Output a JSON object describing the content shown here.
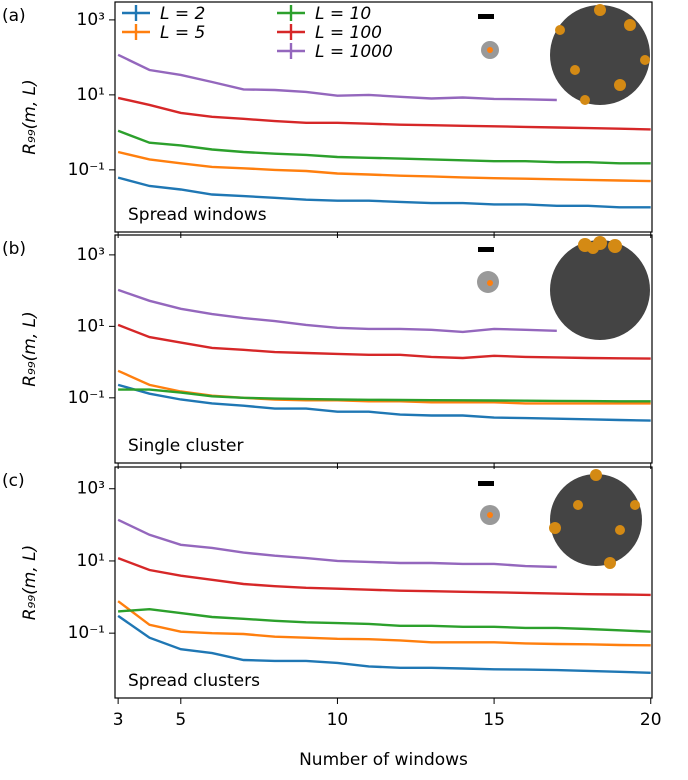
{
  "chart_data": [
    {
      "type": "line",
      "panel_label": "(a)",
      "annotation": "Spread windows",
      "ylabel": "R₉₉(m, L)",
      "yscale": "log",
      "legend": "upper left",
      "x": [
        3,
        4,
        5,
        6,
        7,
        8,
        9,
        10,
        11,
        12,
        13,
        14,
        15,
        16,
        17,
        18,
        19,
        20
      ],
      "xlim": [
        2.9,
        20.04
      ],
      "xticks": [
        3,
        5,
        10,
        15,
        20
      ],
      "ylim": [
        0.0022,
        3000
      ],
      "yticks": [
        {
          "value": 0.1,
          "label": "10⁻¹"
        },
        {
          "value": 10,
          "label": "10¹"
        },
        {
          "value": 1000,
          "label": "10³"
        }
      ],
      "series": [
        {
          "name": "L = 2",
          "color": "#1f77b4",
          "values": [
            0.062,
            0.037,
            0.03,
            0.022,
            0.02,
            0.018,
            0.016,
            0.015,
            0.015,
            0.014,
            0.013,
            0.013,
            0.012,
            0.012,
            0.011,
            0.011,
            0.01,
            0.01
          ]
        },
        {
          "name": "L = 5",
          "color": "#ff7f0e",
          "values": [
            0.3,
            0.19,
            0.15,
            0.12,
            0.11,
            0.1,
            0.093,
            0.08,
            0.075,
            0.07,
            0.067,
            0.063,
            0.06,
            0.058,
            0.056,
            0.054,
            0.052,
            0.05
          ]
        },
        {
          "name": "L = 10",
          "color": "#2ca02c",
          "values": [
            1.1,
            0.53,
            0.45,
            0.35,
            0.3,
            0.27,
            0.25,
            0.22,
            0.21,
            0.2,
            0.19,
            0.18,
            0.17,
            0.17,
            0.16,
            0.16,
            0.15,
            0.15
          ]
        },
        {
          "name": "L = 100",
          "color": "#d62728",
          "values": [
            8.3,
            5.4,
            3.3,
            2.6,
            2.3,
            2.0,
            1.8,
            1.8,
            1.7,
            1.6,
            1.55,
            1.5,
            1.45,
            1.4,
            1.35,
            1.3,
            1.25,
            1.2
          ]
        },
        {
          "name": "L = 1000",
          "color": "#9467bd",
          "values": [
            117,
            46,
            34,
            22,
            14,
            13.5,
            12,
            9.5,
            10,
            8.9,
            8,
            8.5,
            7.8,
            7.6,
            7.3,
            null,
            null,
            null
          ]
        }
      ]
    },
    {
      "type": "line",
      "panel_label": "(b)",
      "annotation": "Single cluster",
      "ylabel": "R₉₉(m, L)",
      "yscale": "log",
      "x": [
        3,
        4,
        5,
        6,
        7,
        8,
        9,
        10,
        11,
        12,
        13,
        14,
        15,
        16,
        17,
        18,
        19,
        20
      ],
      "xlim": [
        2.9,
        20.04
      ],
      "xticks": [
        3,
        5,
        10,
        15,
        20
      ],
      "ylim": [
        0.0015,
        3600
      ],
      "yticks": [
        {
          "value": 0.1,
          "label": "10⁻¹"
        },
        {
          "value": 10,
          "label": "10¹"
        },
        {
          "value": 1000,
          "label": "10³"
        }
      ],
      "series": [
        {
          "color": "#1f77b4",
          "values": [
            0.23,
            0.13,
            0.09,
            0.07,
            0.06,
            0.05,
            0.05,
            0.041,
            0.041,
            0.034,
            0.032,
            0.032,
            0.028,
            0.027,
            0.026,
            0.025,
            0.024,
            0.023
          ]
        },
        {
          "color": "#ff7f0e",
          "values": [
            0.57,
            0.23,
            0.15,
            0.115,
            0.1,
            0.09,
            0.085,
            0.085,
            0.08,
            0.08,
            0.075,
            0.075,
            0.075,
            0.07,
            0.07,
            0.07,
            0.07,
            0.07
          ]
        },
        {
          "color": "#2ca02c",
          "values": [
            0.17,
            0.17,
            0.14,
            0.11,
            0.1,
            0.095,
            0.092,
            0.09,
            0.088,
            0.087,
            0.086,
            0.085,
            0.084,
            0.083,
            0.082,
            0.081,
            0.08,
            0.08
          ]
        },
        {
          "color": "#d62728",
          "values": [
            11,
            5,
            3.5,
            2.5,
            2.2,
            1.9,
            1.8,
            1.7,
            1.6,
            1.6,
            1.4,
            1.3,
            1.5,
            1.4,
            1.35,
            1.3,
            1.28,
            1.25
          ]
        },
        {
          "color": "#9467bd",
          "values": [
            105,
            52,
            31,
            22,
            17,
            14,
            11,
            9.1,
            8.5,
            8.5,
            8,
            7,
            8.5,
            8,
            7.5,
            null,
            null,
            null
          ]
        }
      ]
    },
    {
      "type": "line",
      "panel_label": "(c)",
      "annotation": "Spread clusters",
      "ylabel": "R₉₉(m, L)",
      "xlabel": "Number of windows",
      "yscale": "log",
      "x": [
        3,
        4,
        5,
        6,
        7,
        8,
        9,
        10,
        11,
        12,
        13,
        14,
        15,
        16,
        17,
        18,
        19,
        20
      ],
      "xlim": [
        2.9,
        20.04
      ],
      "xticks": [
        3,
        5,
        10,
        15,
        20
      ],
      "ylim": [
        0.0016,
        4000
      ],
      "yticks": [
        {
          "value": 0.1,
          "label": "10⁻¹"
        },
        {
          "value": 10,
          "label": "10¹"
        },
        {
          "value": 1000,
          "label": "10³"
        }
      ],
      "series": [
        {
          "color": "#1f77b4",
          "values": [
            0.3,
            0.075,
            0.036,
            0.028,
            0.018,
            0.017,
            0.017,
            0.015,
            0.012,
            0.011,
            0.011,
            0.0105,
            0.01,
            0.0098,
            0.0095,
            0.009,
            0.0085,
            0.008
          ]
        },
        {
          "color": "#ff7f0e",
          "values": [
            0.77,
            0.17,
            0.11,
            0.1,
            0.095,
            0.08,
            0.075,
            0.07,
            0.068,
            0.063,
            0.056,
            0.056,
            0.056,
            0.052,
            0.05,
            0.049,
            0.047,
            0.046
          ]
        },
        {
          "color": "#2ca02c",
          "values": [
            0.4,
            0.46,
            0.36,
            0.28,
            0.25,
            0.22,
            0.2,
            0.19,
            0.18,
            0.16,
            0.16,
            0.15,
            0.15,
            0.14,
            0.14,
            0.13,
            0.12,
            0.11
          ]
        },
        {
          "color": "#d62728",
          "values": [
            12,
            5.6,
            3.9,
            3.0,
            2.3,
            2.0,
            1.8,
            1.7,
            1.6,
            1.5,
            1.45,
            1.4,
            1.35,
            1.3,
            1.25,
            1.2,
            1.18,
            1.15
          ]
        },
        {
          "color": "#9467bd",
          "values": [
            138,
            53,
            28,
            23,
            17,
            14,
            12,
            10,
            9.4,
            8.8,
            8.8,
            8.3,
            8.3,
            7.2,
            6.8,
            null,
            null,
            null
          ]
        }
      ]
    }
  ]
}
